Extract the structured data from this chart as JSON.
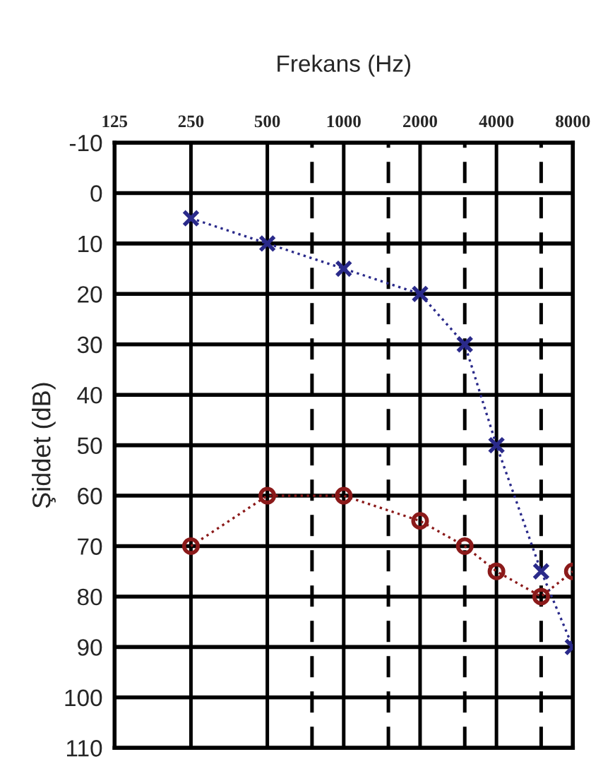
{
  "chart_data": {
    "type": "line",
    "xlabel": "Frekans (Hz)",
    "ylabel": "Şiddet (dB)",
    "log": "x",
    "xlim": [
      125,
      8000
    ],
    "xticks": [
      125,
      250,
      500,
      {
        "value": 750,
        "label": null
      },
      1000,
      {
        "value": 1500,
        "label": null
      },
      2000,
      {
        "value": 3000,
        "label": null
      },
      4000,
      {
        "value": 6000,
        "label": null
      },
      8000
    ],
    "ylim": [
      110,
      -10
    ],
    "yticks": [
      -10,
      0,
      10,
      20,
      30,
      40,
      50,
      60,
      70,
      80,
      90,
      100,
      110
    ],
    "grid": true,
    "line_style": "dotted",
    "series": [
      {
        "color": "#2a2a8a",
        "marker": "cross",
        "x": [
          250,
          500,
          1000,
          2000,
          3000,
          4000,
          6000,
          8000
        ],
        "values": [
          5,
          10,
          15,
          20,
          30,
          50,
          75,
          90
        ]
      },
      {
        "color": "#8b1a1a",
        "marker": "circle",
        "x": [
          250,
          500,
          1000,
          2000,
          3000,
          4000,
          6000,
          8000
        ],
        "values": [
          70,
          60,
          60,
          65,
          70,
          75,
          80,
          75
        ]
      }
    ]
  }
}
